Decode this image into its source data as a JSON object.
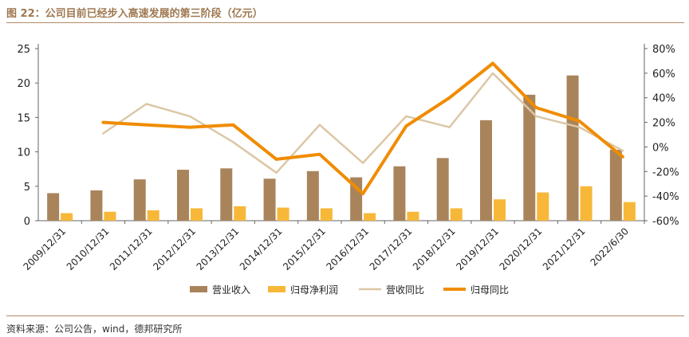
{
  "figure": {
    "title": "图 22：公司目前已经步入高速发展的第三阶段（亿元）",
    "source": "资料来源：公司公告，wind，德邦研究所"
  },
  "colors": {
    "revenue": "#a9845b",
    "net_profit": "#f7b839",
    "revenue_yoy": "#dcc7a6",
    "profit_yoy": "#f08c00",
    "accent": "#b28a64"
  },
  "chart_data": {
    "type": "bar",
    "categories": [
      "2009/12/31",
      "2010/12/31",
      "2011/12/31",
      "2012/12/31",
      "2013/12/31",
      "2014/12/31",
      "2015/12/31",
      "2016/12/31",
      "2017/12/31",
      "2018/12/31",
      "2019/12/31",
      "2020/12/31",
      "2021/12/31",
      "2022/6/30"
    ],
    "series": [
      {
        "name": "营业收入",
        "kind": "bar",
        "axis": "left",
        "values": [
          4.0,
          4.4,
          6.0,
          7.4,
          7.6,
          6.1,
          7.2,
          6.3,
          7.9,
          9.1,
          14.6,
          18.3,
          21.1,
          10.3
        ]
      },
      {
        "name": "归母净利润",
        "kind": "bar",
        "axis": "left",
        "values": [
          1.1,
          1.3,
          1.5,
          1.8,
          2.1,
          1.9,
          1.8,
          1.1,
          1.3,
          1.8,
          3.1,
          4.1,
          5.0,
          2.7
        ]
      },
      {
        "name": "营收同比",
        "kind": "line",
        "axis": "right",
        "values": [
          null,
          11,
          35,
          25,
          4,
          -21,
          18,
          -13,
          25,
          16,
          60,
          25,
          16,
          -3
        ]
      },
      {
        "name": "归母同比",
        "kind": "line",
        "axis": "right",
        "values": [
          null,
          20,
          18,
          16,
          18,
          -10,
          -6,
          -38,
          17,
          40,
          68,
          32,
          21,
          -8
        ]
      }
    ],
    "y_left": {
      "min": 0,
      "max": 25,
      "ticks": [
        "0",
        "5",
        "10",
        "15",
        "20",
        "25"
      ]
    },
    "y_right": {
      "min": -60,
      "max": 80,
      "ticks": [
        "-60%",
        "-40%",
        "-20%",
        "0%",
        "20%",
        "40%",
        "60%",
        "80%"
      ]
    },
    "legend": [
      "营业收入",
      "归母净利润",
      "营收同比",
      "归母同比"
    ],
    "legend_position": "bottom"
  }
}
